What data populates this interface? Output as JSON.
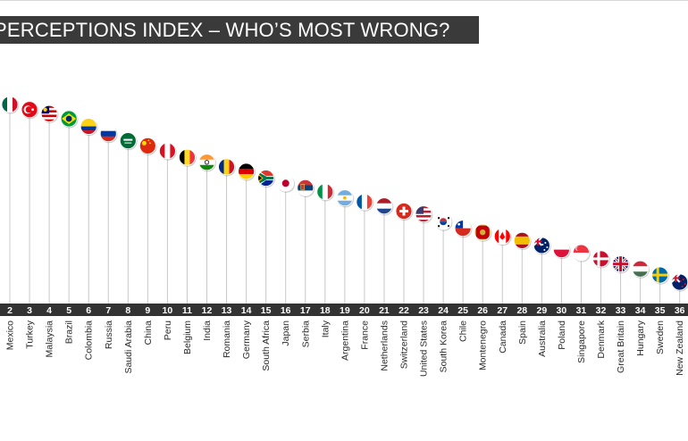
{
  "title": "PERCEPTIONS INDEX – WHO’S MOST WRONG?",
  "chart_data": {
    "type": "scatter",
    "title": "PERCEPTIONS INDEX – WHO’S MOST WRONG?",
    "xlabel": "",
    "ylabel": "",
    "grid": false,
    "points": [
      {
        "rank": 2,
        "country": "Mexico",
        "score": 100.0,
        "flag": "flag-mexico",
        "colors": [
          "#006847",
          "#ffffff",
          "#ce1126"
        ]
      },
      {
        "rank": 3,
        "country": "Turkey",
        "score": 97.3,
        "flag": "flag-turkey",
        "colors": [
          "#e30a17"
        ]
      },
      {
        "rank": 4,
        "country": "Malaysia",
        "score": 95.2,
        "flag": "flag-malaysia",
        "colors": [
          "#cc0001",
          "#ffffff",
          "#010066"
        ]
      },
      {
        "rank": 5,
        "country": "Brazil",
        "score": 92.5,
        "flag": "flag-brazil",
        "colors": [
          "#009b3a",
          "#fedf00",
          "#002776"
        ]
      },
      {
        "rank": 6,
        "country": "Colombia",
        "score": 88.5,
        "flag": "flag-colombia",
        "colors": [
          "#fcd116",
          "#003893",
          "#ce1126"
        ]
      },
      {
        "rank": 7,
        "country": "Russia",
        "score": 84.7,
        "flag": "flag-russia",
        "colors": [
          "#ffffff",
          "#0039a6",
          "#d52b1e"
        ]
      },
      {
        "rank": 8,
        "country": "Saudi Arabia",
        "score": 81.0,
        "flag": "flag-saudi-arabia",
        "colors": [
          "#006c35"
        ]
      },
      {
        "rank": 9,
        "country": "China",
        "score": 78.3,
        "flag": "flag-china",
        "colors": [
          "#de2910",
          "#ffde00"
        ]
      },
      {
        "rank": 10,
        "country": "Peru",
        "score": 75.6,
        "flag": "flag-peru",
        "colors": [
          "#d91023",
          "#ffffff",
          "#d91023"
        ]
      },
      {
        "rank": 11,
        "country": "Belgium",
        "score": 72.3,
        "flag": "flag-belgium",
        "colors": [
          "#000000",
          "#fdda24",
          "#ef3340"
        ]
      },
      {
        "rank": 12,
        "country": "India",
        "score": 69.7,
        "flag": "flag-india",
        "colors": [
          "#ff9933",
          "#ffffff",
          "#138808"
        ]
      },
      {
        "rank": 13,
        "country": "Romania",
        "score": 67.3,
        "flag": "flag-romania",
        "colors": [
          "#002b7f",
          "#fcd116",
          "#ce1126"
        ]
      },
      {
        "rank": 14,
        "country": "Germany",
        "score": 64.9,
        "flag": "flag-germany",
        "colors": [
          "#000000",
          "#dd0000",
          "#ffce00"
        ]
      },
      {
        "rank": 15,
        "country": "South Africa",
        "score": 61.4,
        "flag": "flag-south-africa",
        "colors": [
          "#007a4d",
          "#ffb612",
          "#de3831",
          "#002395"
        ]
      },
      {
        "rank": 16,
        "country": "Japan",
        "score": 58.7,
        "flag": "flag-japan",
        "colors": [
          "#ffffff",
          "#bc002d"
        ]
      },
      {
        "rank": 17,
        "country": "Serbia",
        "score": 56.3,
        "flag": "flag-serbia",
        "colors": [
          "#c6363c",
          "#0c4076",
          "#ffffff"
        ]
      },
      {
        "rank": 18,
        "country": "Italy",
        "score": 54.2,
        "flag": "flag-italy",
        "colors": [
          "#009246",
          "#ffffff",
          "#ce2b37"
        ]
      },
      {
        "rank": 19,
        "country": "Argentina",
        "score": 51.0,
        "flag": "flag-argentina",
        "colors": [
          "#74acdf",
          "#ffffff",
          "#74acdf"
        ]
      },
      {
        "rank": 20,
        "country": "France",
        "score": 48.9,
        "flag": "flag-france",
        "colors": [
          "#0055a4",
          "#ffffff",
          "#ef4135"
        ]
      },
      {
        "rank": 21,
        "country": "Netherlands",
        "score": 46.8,
        "flag": "flag-netherlands",
        "colors": [
          "#ae1c28",
          "#ffffff",
          "#21468b"
        ]
      },
      {
        "rank": 22,
        "country": "Switzerland",
        "score": 44.1,
        "flag": "flag-switzerland",
        "colors": [
          "#d52b1e",
          "#ffffff"
        ]
      },
      {
        "rank": 23,
        "country": "United States",
        "score": 42.6,
        "flag": "flag-united-states",
        "colors": [
          "#b22234",
          "#ffffff",
          "#3c3b6e"
        ]
      },
      {
        "rank": 24,
        "country": "South Korea",
        "score": 38.6,
        "flag": "flag-south-korea",
        "colors": [
          "#ffffff",
          "#cd2e3a",
          "#0047a0"
        ]
      },
      {
        "rank": 25,
        "country": "Chile",
        "score": 35.1,
        "flag": "flag-chile",
        "colors": [
          "#ffffff",
          "#d52b1e",
          "#0039a6"
        ]
      },
      {
        "rank": 26,
        "country": "Montenegro",
        "score": 33.0,
        "flag": "flag-montenegro",
        "colors": [
          "#c40308",
          "#d3ae3b"
        ]
      },
      {
        "rank": 27,
        "country": "Canada",
        "score": 30.9,
        "flag": "flag-canada",
        "colors": [
          "#ff0000",
          "#ffffff",
          "#ff0000"
        ]
      },
      {
        "rank": 28,
        "country": "Spain",
        "score": 28.7,
        "flag": "flag-spain",
        "colors": [
          "#aa151b",
          "#f1bf00",
          "#aa151b"
        ]
      },
      {
        "rank": 29,
        "country": "Australia",
        "score": 26.1,
        "flag": "flag-australia",
        "colors": [
          "#012169",
          "#ffffff",
          "#e4002b"
        ]
      },
      {
        "rank": 30,
        "country": "Poland",
        "score": 23.9,
        "flag": "flag-poland",
        "colors": [
          "#ffffff",
          "#dc143c"
        ]
      },
      {
        "rank": 31,
        "country": "Singapore",
        "score": 22.3,
        "flag": "flag-singapore",
        "colors": [
          "#ef3340",
          "#ffffff"
        ]
      },
      {
        "rank": 32,
        "country": "Denmark",
        "score": 19.1,
        "flag": "flag-denmark",
        "colors": [
          "#c8102e",
          "#ffffff"
        ]
      },
      {
        "rank": 33,
        "country": "Great Britain",
        "score": 16.4,
        "flag": "flag-great-britain",
        "colors": [
          "#012169",
          "#ffffff",
          "#c8102e"
        ]
      },
      {
        "rank": 34,
        "country": "Hungary",
        "score": 13.8,
        "flag": "flag-hungary",
        "colors": [
          "#ce2939",
          "#ffffff",
          "#477050"
        ]
      },
      {
        "rank": 35,
        "country": "Sweden",
        "score": 10.6,
        "flag": "flag-sweden",
        "colors": [
          "#006aa7",
          "#fecc00"
        ]
      },
      {
        "rank": 36,
        "country": "New Zealand",
        "score": 6.9,
        "flag": "flag-new-zealand",
        "colors": [
          "#012169",
          "#ffffff",
          "#cc142b"
        ]
      }
    ]
  }
}
